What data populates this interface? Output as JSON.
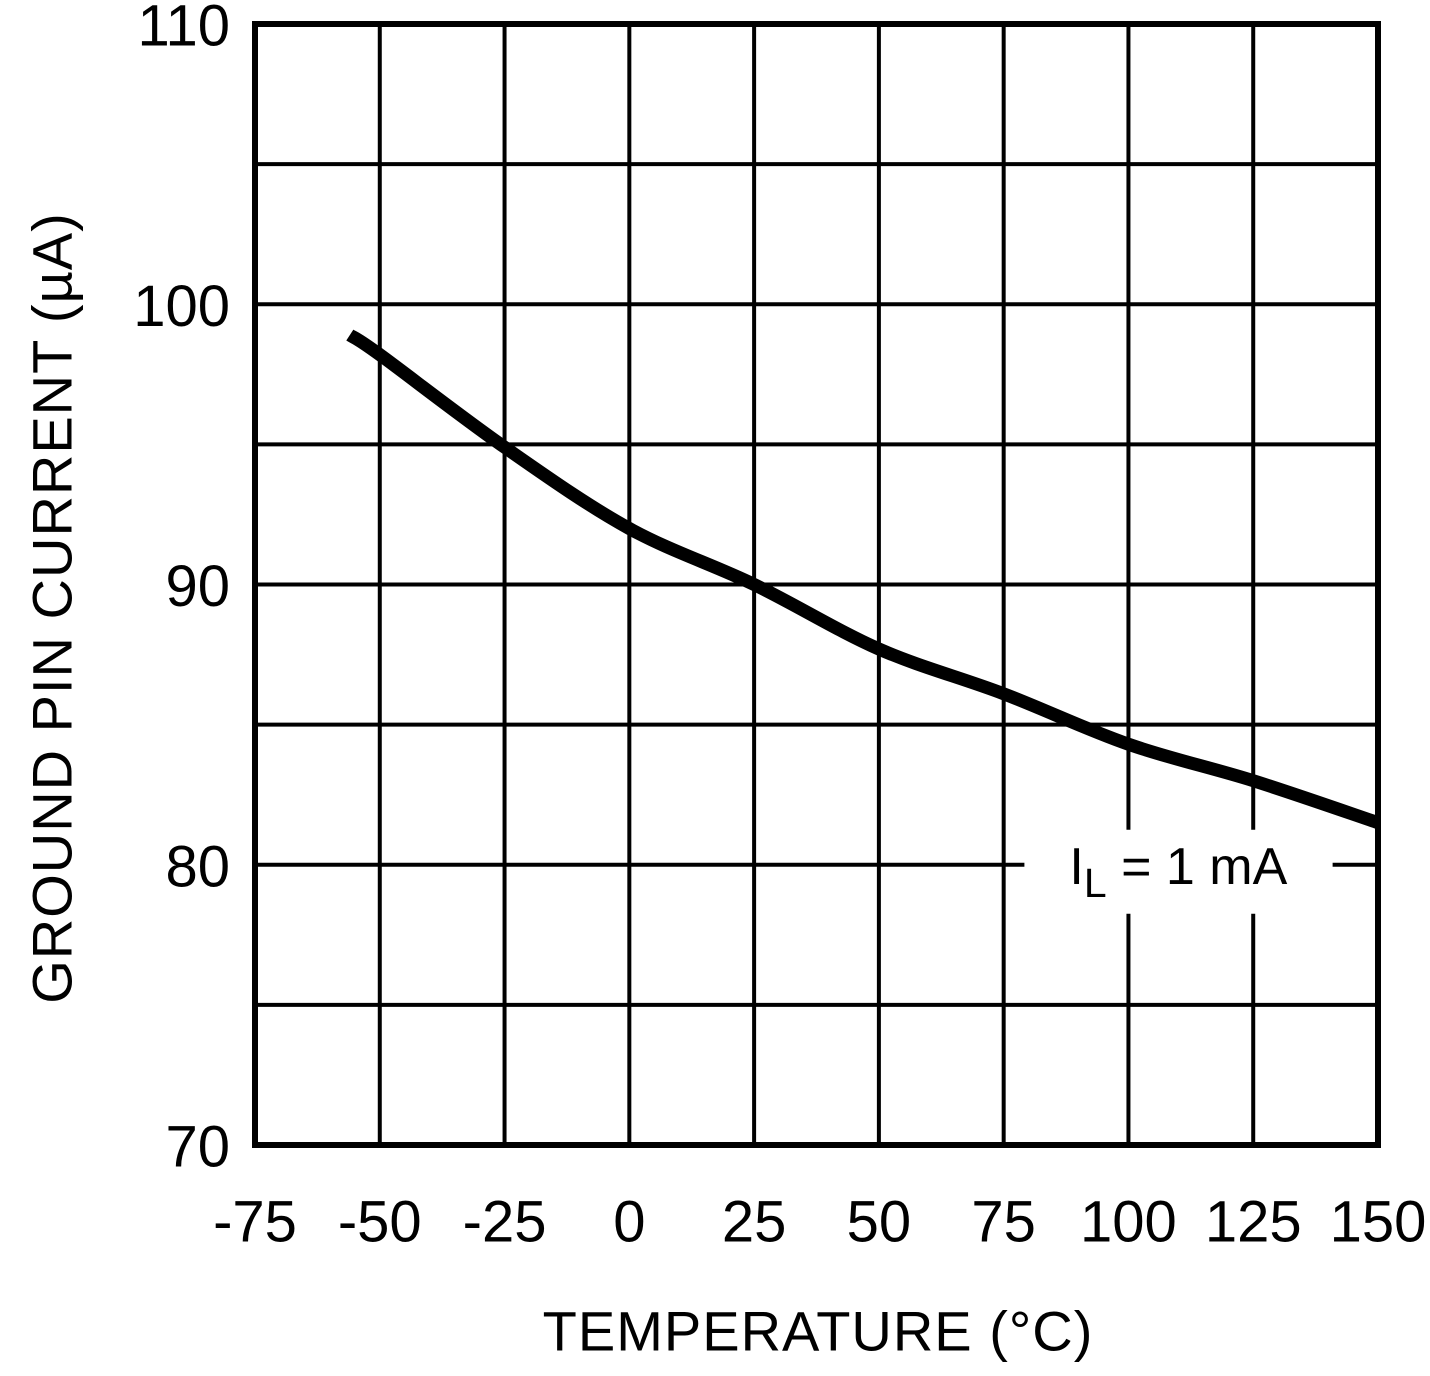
{
  "chart_data": {
    "type": "line",
    "title": "",
    "xlabel": "TEMPERATURE (°C)",
    "ylabel": "GROUND PIN CURRENT (µA)",
    "xlim": [
      -75,
      150
    ],
    "ylim": [
      70,
      110
    ],
    "x_ticks": [
      -75,
      -50,
      -25,
      0,
      25,
      50,
      75,
      100,
      125,
      150
    ],
    "y_tick_labels": [
      110,
      100,
      90,
      80,
      70
    ],
    "x_grid_step": 25,
    "y_grid_step": 5,
    "grid": true,
    "legend": "none",
    "line_color": "#000000",
    "background_color": "#ffffff",
    "series": [
      {
        "name": "ground-pin-current",
        "x": [
          -56,
          -50,
          -25,
          0,
          25,
          50,
          75,
          100,
          125,
          150
        ],
        "y": [
          98.9,
          98.2,
          94.9,
          92.0,
          90.0,
          87.7,
          86.1,
          84.3,
          83.0,
          81.5
        ]
      }
    ],
    "annotation": {
      "base": "I",
      "sub": "L",
      "rest": " = 1 mA",
      "x": 110,
      "y": 80
    }
  }
}
